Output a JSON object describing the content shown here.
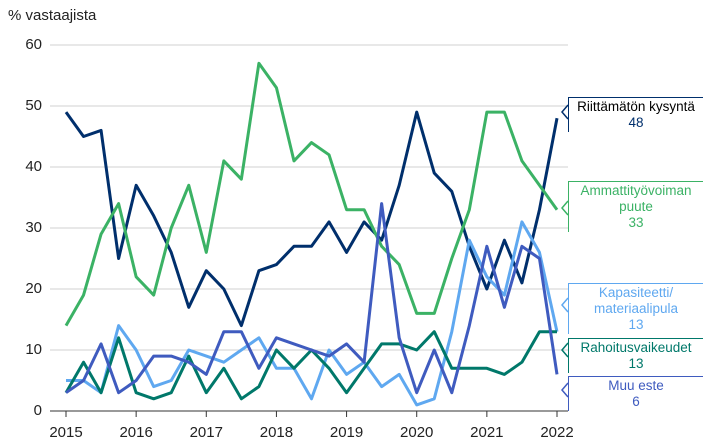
{
  "chart_data": {
    "type": "line",
    "ylabel": "% vastaajista",
    "x": [
      2015,
      2015.25,
      2015.5,
      2015.75,
      2016,
      2016.25,
      2016.5,
      2016.75,
      2017,
      2017.25,
      2017.5,
      2017.75,
      2018,
      2018.25,
      2018.5,
      2018.75,
      2019,
      2019.25,
      2019.5,
      2019.75,
      2020,
      2020.25,
      2020.5,
      2020.75,
      2021,
      2021.25,
      2021.5,
      2021.75,
      2022
    ],
    "xlim": [
      2015,
      2022
    ],
    "xticks": [
      2015,
      2016,
      2017,
      2018,
      2019,
      2020,
      2021,
      2022
    ],
    "ylim": [
      0,
      60
    ],
    "yticks": [
      0,
      10,
      20,
      30,
      40,
      50,
      60
    ],
    "grid": true,
    "series": [
      {
        "name": "Riittämätön kysyntä",
        "color": "#002f6c",
        "values": [
          49,
          45,
          46,
          25,
          37,
          32,
          26,
          17,
          23,
          20,
          14,
          23,
          24,
          27,
          27,
          31,
          26,
          31,
          28,
          37,
          49,
          39,
          36,
          27,
          20,
          28,
          21,
          33,
          48
        ]
      },
      {
        "name": "Ammattityövoiman puute",
        "color": "#3bb265",
        "values": [
          14,
          19,
          29,
          34,
          22,
          19,
          30,
          37,
          26,
          41,
          38,
          57,
          53,
          41,
          44,
          42,
          33,
          33,
          27,
          24,
          16,
          16,
          25,
          33,
          49,
          49,
          41,
          37,
          33
        ]
      },
      {
        "name": "Kapasiteetti/ materiaalipula",
        "color": "#5fa8f0",
        "values": [
          5,
          5,
          3,
          14,
          10,
          4,
          5,
          10,
          9,
          8,
          10,
          12,
          7,
          7,
          2,
          10,
          6,
          8,
          4,
          6,
          1,
          2,
          13,
          28,
          22,
          19,
          31,
          26,
          13
        ]
      },
      {
        "name": "Rahoitusvaikeudet",
        "color": "#00786a",
        "values": [
          3,
          8,
          3,
          12,
          3,
          2,
          3,
          9,
          3,
          7,
          2,
          4,
          10,
          7,
          10,
          7,
          3,
          7,
          11,
          11,
          10,
          13,
          7,
          7,
          7,
          6,
          8,
          13,
          13
        ]
      },
      {
        "name": "Muu este",
        "color": "#3f5bbf",
        "values": [
          3,
          5,
          11,
          3,
          5,
          9,
          9,
          8,
          6,
          13,
          13,
          7,
          12,
          11,
          10,
          9,
          11,
          8,
          34,
          12,
          3,
          10,
          3,
          14,
          27,
          17,
          27,
          25,
          6
        ]
      }
    ]
  }
}
